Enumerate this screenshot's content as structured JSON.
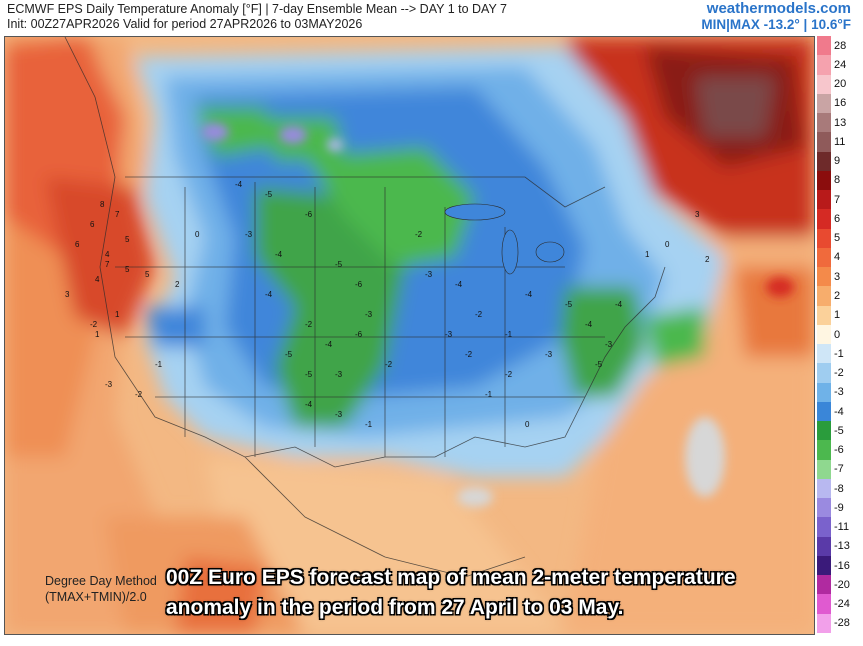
{
  "header": {
    "title": "ECMWF EPS Daily Temperature Anomaly [°F] | 7-day Ensemble Mean --> DAY 1 to DAY 7",
    "init": "Init: 00Z27APR2026 Valid for period 27APR2026 to 03MAY2026",
    "brand": "weathermodels.com",
    "minmax": "MIN|MAX -13.2° | 10.6°F"
  },
  "method": {
    "line1": "Degree Day Method",
    "line2": "(TMAX+TMIN)/2.0"
  },
  "caption": {
    "line1": "00Z Euro EPS forecast map of mean 2-meter temperature",
    "line2": "anomaly in the period from 27 April to 03 May."
  },
  "legend": {
    "ticks": [
      "28",
      "24",
      "20",
      "16",
      "13",
      "11",
      "9",
      "8",
      "7",
      "6",
      "5",
      "4",
      "3",
      "2",
      "1",
      "0",
      "-1",
      "-2",
      "-3",
      "-4",
      "-5",
      "-6",
      "-7",
      "-8",
      "-9",
      "-11",
      "-13",
      "-16",
      "-20",
      "-24",
      "-28"
    ],
    "colors": [
      "#f07a8c",
      "#f5a2ae",
      "#f7c6cc",
      "#c9a4a4",
      "#a87a7a",
      "#8f5a5a",
      "#6e2a2a",
      "#8b0d0d",
      "#b81a1a",
      "#d52a24",
      "#e84a30",
      "#f06a3c",
      "#f48a4a",
      "#f7ad6c",
      "#fbd19a",
      "#fff6e2",
      "#cfe6f7",
      "#9fcdf0",
      "#6fb2e8",
      "#3a86d8",
      "#2a9c3c",
      "#4cb84e",
      "#8fd88f",
      "#b8b8f0",
      "#9a8ae0",
      "#7a62cc",
      "#5a3aa8",
      "#3a1a7a",
      "#b02aa0",
      "#e05ad0",
      "#f2a0ea"
    ]
  },
  "map_labels": {
    "west": [
      "8",
      "7",
      "6",
      "5",
      "4",
      "6",
      "5",
      "4",
      "3",
      "7",
      "5",
      "2",
      "1",
      "1",
      "0",
      "-2",
      "-1",
      "-3",
      "-2"
    ],
    "central": [
      "-4",
      "-5",
      "-6",
      "-3",
      "-4",
      "-5",
      "-6",
      "-3",
      "-2",
      "-4",
      "-5",
      "-3",
      "-6",
      "-4",
      "-2",
      "-1",
      "-3",
      "-5",
      "-4",
      "-2"
    ],
    "east": [
      "-3",
      "-4",
      "-5",
      "-4",
      "-3",
      "-2",
      "-1",
      "-4",
      "-5",
      "-3",
      "-2",
      "0",
      "1",
      "0",
      "2",
      "-1",
      "-3",
      "-2",
      "-4",
      "3"
    ]
  }
}
